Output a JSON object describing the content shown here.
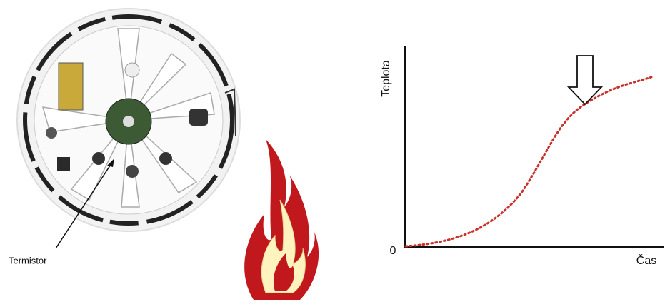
{
  "photo_label": "Termistor",
  "graph": {
    "y_axis_label": "Teplota",
    "x_axis_label": "Čas",
    "origin_label": "0"
  }
}
